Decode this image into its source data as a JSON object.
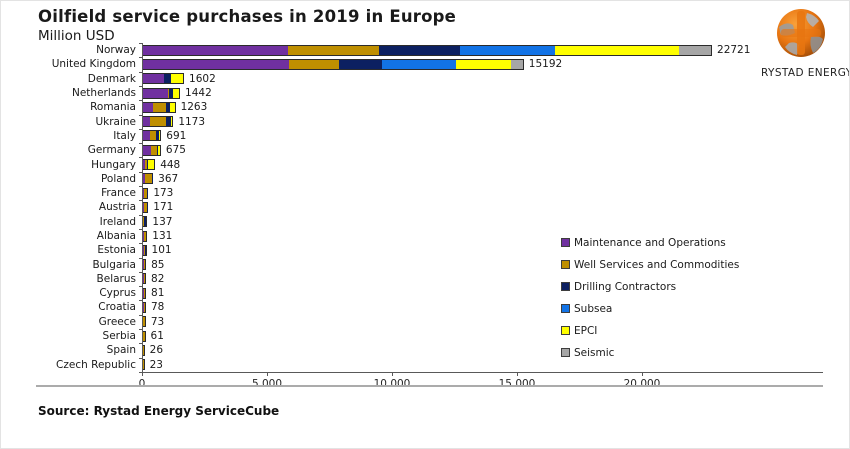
{
  "title": "Oilfield service purchases in 2019 in Europe",
  "subtitle": "Million USD",
  "source": "Source: Rystad Energy ServiceCube",
  "logo": {
    "text": "RYSTAD ENERGY"
  },
  "chart_data": {
    "type": "bar",
    "orientation": "horizontal-stacked",
    "title": "Oilfield service purchases in 2019 in Europe",
    "unit": "Million USD",
    "axis_max": 27240,
    "grid": false,
    "legend_position": "center-right",
    "x_ticks": [
      {
        "value": 0,
        "label": "0"
      },
      {
        "value": 5000,
        "label": "5 000"
      },
      {
        "value": 10000,
        "label": "10 000"
      },
      {
        "value": 15000,
        "label": "15 000"
      },
      {
        "value": 20000,
        "label": "20 000"
      }
    ],
    "categories": [
      "Norway",
      "United Kingdom",
      "Denmark",
      "Netherlands",
      "Romania",
      "Ukraine",
      "Italy",
      "Germany",
      "Hungary",
      "Poland",
      "France",
      "Austria",
      "Ireland",
      "Albania",
      "Estonia",
      "Bulgaria",
      "Belarus",
      "Cyprus",
      "Croatia",
      "Greece",
      "Serbia",
      "Spain",
      "Czech Republic"
    ],
    "totals": [
      22721,
      15192,
      1602,
      1442,
      1263,
      1173,
      691,
      675,
      448,
      367,
      173,
      171,
      137,
      131,
      101,
      85,
      82,
      81,
      78,
      73,
      61,
      26,
      23
    ],
    "series": [
      {
        "name": "Maintenance and Operations",
        "color": "#7030A0",
        "values": [
          5780,
          5830,
          850,
          1000,
          400,
          270,
          280,
          300,
          60,
          60,
          40,
          40,
          0,
          30,
          20,
          20,
          20,
          20,
          20,
          18,
          15,
          6,
          5
        ]
      },
      {
        "name": "Well Services and Commodities",
        "color": "#BF8F00",
        "values": [
          3660,
          2020,
          0,
          50,
          533,
          660,
          250,
          250,
          100,
          280,
          110,
          111,
          30,
          101,
          50,
          65,
          62,
          61,
          58,
          55,
          46,
          20,
          18
        ]
      },
      {
        "name": "Drilling Contractors",
        "color": "#0C2061",
        "values": [
          3230,
          1710,
          270,
          140,
          130,
          170,
          100,
          60,
          40,
          27,
          23,
          20,
          107,
          0,
          31,
          0,
          0,
          0,
          0,
          0,
          0,
          0,
          0
        ]
      },
      {
        "name": "Subsea",
        "color": "#1273E6",
        "values": [
          3790,
          2950,
          0,
          0,
          0,
          0,
          0,
          0,
          0,
          0,
          0,
          0,
          0,
          0,
          0,
          0,
          0,
          0,
          0,
          0,
          0,
          0,
          0
        ]
      },
      {
        "name": "EPCI",
        "color": "#FFFF00",
        "values": [
          4995,
          2200,
          482,
          252,
          200,
          73,
          61,
          65,
          248,
          0,
          0,
          0,
          0,
          0,
          0,
          0,
          0,
          0,
          0,
          0,
          0,
          0,
          0
        ]
      },
      {
        "name": "Seismic",
        "color": "#A6A6A6",
        "values": [
          1266,
          482,
          0,
          0,
          0,
          0,
          0,
          0,
          0,
          0,
          0,
          0,
          0,
          0,
          0,
          0,
          0,
          0,
          0,
          0,
          0,
          0,
          0
        ]
      }
    ]
  }
}
